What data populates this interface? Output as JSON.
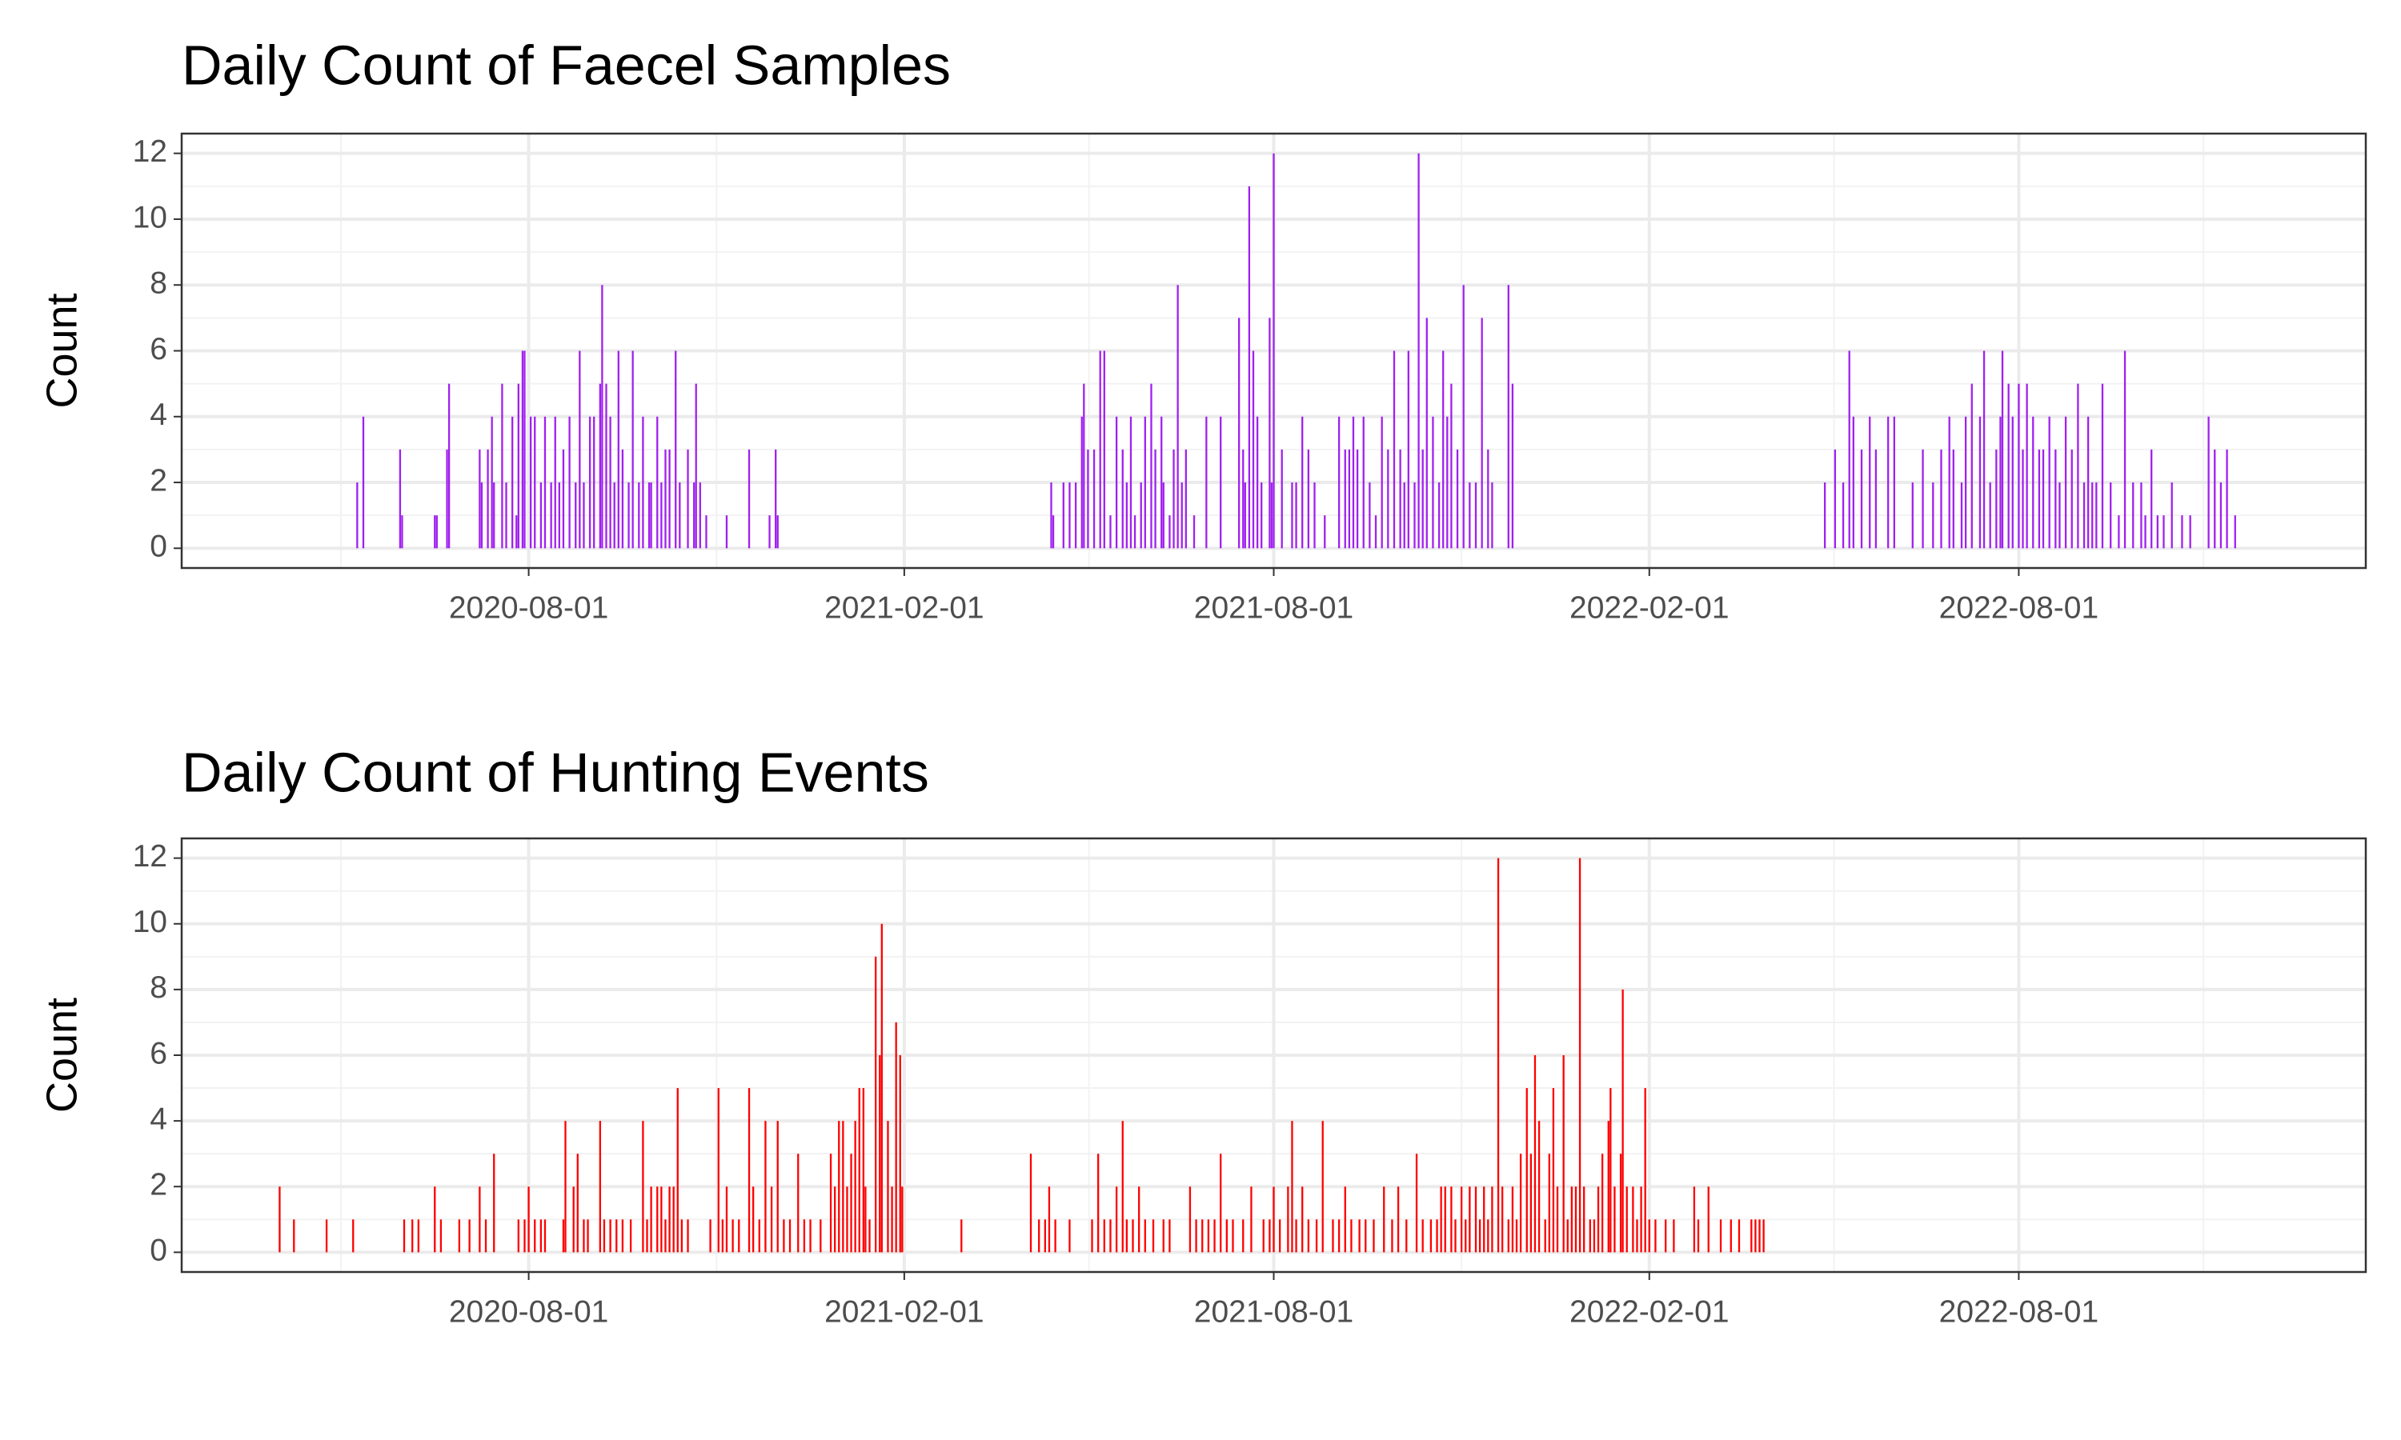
{
  "chart_data": [
    {
      "type": "bar",
      "title": "Daily Count of Faecel Samples",
      "y_label": "Count",
      "color": "#a020f0",
      "x": [
        "2020-05-09",
        "2020-05-12",
        "2020-05-30",
        "2020-05-31",
        "2020-06-16",
        "2020-06-17",
        "2020-06-22",
        "2020-06-23",
        "2020-07-08",
        "2020-07-09",
        "2020-07-12",
        "2020-07-14",
        "2020-07-15",
        "2020-07-19",
        "2020-07-21",
        "2020-07-24",
        "2020-07-26",
        "2020-07-27",
        "2020-07-29",
        "2020-07-30",
        "2020-08-02",
        "2020-08-04",
        "2020-08-07",
        "2020-08-09",
        "2020-08-12",
        "2020-08-14",
        "2020-08-16",
        "2020-08-18",
        "2020-08-21",
        "2020-08-24",
        "2020-08-26",
        "2020-08-28",
        "2020-08-31",
        "2020-09-02",
        "2020-09-05",
        "2020-09-06",
        "2020-09-08",
        "2020-09-10",
        "2020-09-12",
        "2020-09-14",
        "2020-09-16",
        "2020-09-19",
        "2020-09-21",
        "2020-09-24",
        "2020-09-26",
        "2020-09-29",
        "2020-09-30",
        "2020-10-03",
        "2020-10-05",
        "2020-10-07",
        "2020-10-09",
        "2020-10-12",
        "2020-10-14",
        "2020-10-18",
        "2020-10-21",
        "2020-10-22",
        "2020-10-24",
        "2020-10-27",
        "2020-11-06",
        "2020-11-17",
        "2020-11-27",
        "2020-11-30",
        "2020-12-01",
        "2021-04-14",
        "2021-04-15",
        "2021-04-20",
        "2021-04-23",
        "2021-04-26",
        "2021-04-29",
        "2021-04-30",
        "2021-05-02",
        "2021-05-05",
        "2021-05-08",
        "2021-05-10",
        "2021-05-13",
        "2021-05-16",
        "2021-05-19",
        "2021-05-21",
        "2021-05-23",
        "2021-05-25",
        "2021-05-28",
        "2021-05-30",
        "2021-06-02",
        "2021-06-04",
        "2021-06-07",
        "2021-06-08",
        "2021-06-11",
        "2021-06-13",
        "2021-06-15",
        "2021-06-17",
        "2021-06-19",
        "2021-06-23",
        "2021-06-29",
        "2021-07-06",
        "2021-07-15",
        "2021-07-17",
        "2021-07-18",
        "2021-07-20",
        "2021-07-22",
        "2021-07-24",
        "2021-07-26",
        "2021-07-30",
        "2021-07-31",
        "2021-08-01",
        "2021-08-05",
        "2021-08-10",
        "2021-08-12",
        "2021-08-15",
        "2021-08-18",
        "2021-08-21",
        "2021-08-26",
        "2021-09-02",
        "2021-09-05",
        "2021-09-07",
        "2021-09-09",
        "2021-09-11",
        "2021-09-14",
        "2021-09-17",
        "2021-09-20",
        "2021-09-23",
        "2021-09-26",
        "2021-09-29",
        "2021-10-02",
        "2021-10-04",
        "2021-10-06",
        "2021-10-09",
        "2021-10-11",
        "2021-10-13",
        "2021-10-15",
        "2021-10-18",
        "2021-10-21",
        "2021-10-23",
        "2021-10-25",
        "2021-10-27",
        "2021-10-30",
        "2021-11-02",
        "2021-11-05",
        "2021-11-08",
        "2021-11-11",
        "2021-11-14",
        "2021-11-16",
        "2021-11-24",
        "2021-11-26",
        "2022-04-28",
        "2022-05-03",
        "2022-05-07",
        "2022-05-10",
        "2022-05-12",
        "2022-05-16",
        "2022-05-20",
        "2022-05-23",
        "2022-05-29",
        "2022-06-01",
        "2022-06-10",
        "2022-06-15",
        "2022-06-20",
        "2022-06-24",
        "2022-06-28",
        "2022-06-30",
        "2022-07-04",
        "2022-07-06",
        "2022-07-09",
        "2022-07-13",
        "2022-07-15",
        "2022-07-18",
        "2022-07-21",
        "2022-07-23",
        "2022-07-24",
        "2022-07-27",
        "2022-07-29",
        "2022-08-01",
        "2022-08-03",
        "2022-08-05",
        "2022-08-08",
        "2022-08-11",
        "2022-08-13",
        "2022-08-16",
        "2022-08-19",
        "2022-08-21",
        "2022-08-24",
        "2022-08-27",
        "2022-08-30",
        "2022-09-02",
        "2022-09-04",
        "2022-09-06",
        "2022-09-08",
        "2022-09-11",
        "2022-09-15",
        "2022-09-19",
        "2022-09-22",
        "2022-09-26",
        "2022-09-30",
        "2022-10-02",
        "2022-10-05",
        "2022-10-08",
        "2022-10-11",
        "2022-10-15",
        "2022-10-20",
        "2022-10-24",
        "2022-11-02",
        "2022-11-05",
        "2022-11-08",
        "2022-11-11",
        "2022-11-15"
      ],
      "values": [
        2,
        4,
        3,
        1,
        1,
        1,
        3,
        5,
        3,
        2,
        3,
        4,
        2,
        5,
        2,
        4,
        1,
        5,
        6,
        6,
        4,
        4,
        2,
        4,
        2,
        4,
        2,
        3,
        4,
        2,
        6,
        2,
        4,
        4,
        5,
        8,
        5,
        4,
        2,
        6,
        3,
        2,
        6,
        2,
        4,
        2,
        2,
        4,
        2,
        3,
        3,
        6,
        2,
        3,
        2,
        5,
        2,
        1,
        1,
        3,
        1,
        3,
        1,
        2,
        1,
        2,
        2,
        2,
        4,
        5,
        3,
        3,
        6,
        6,
        1,
        4,
        3,
        2,
        4,
        1,
        2,
        4,
        5,
        3,
        4,
        2,
        1,
        3,
        8,
        2,
        3,
        1,
        4,
        4,
        7,
        3,
        2,
        11,
        6,
        4,
        2,
        7,
        2,
        12,
        3,
        2,
        2,
        4,
        3,
        2,
        1,
        4,
        3,
        3,
        4,
        3,
        4,
        2,
        1,
        4,
        3,
        6,
        3,
        2,
        6,
        2,
        12,
        3,
        7,
        4,
        2,
        6,
        4,
        5,
        3,
        8,
        2,
        2,
        7,
        3,
        2,
        8,
        5,
        2,
        3,
        2,
        6,
        4,
        3,
        4,
        3,
        4,
        4,
        2,
        3,
        2,
        3,
        4,
        3,
        2,
        4,
        5,
        4,
        6,
        2,
        3,
        4,
        6,
        5,
        4,
        5,
        3,
        5,
        4,
        3,
        3,
        4,
        3,
        2,
        4,
        3,
        5,
        2,
        4,
        2,
        2,
        5,
        2,
        1,
        6,
        2,
        2,
        1,
        3,
        1,
        1,
        2,
        1,
        1,
        4,
        3,
        2,
        3,
        1
      ],
      "xlim": [
        "2020-02-13",
        "2023-01-18"
      ],
      "xticks": [
        "2020-08-01",
        "2021-02-01",
        "2021-08-01",
        "2022-02-01",
        "2022-08-01"
      ],
      "ylim": [
        -0.6,
        12.6
      ],
      "yticks": [
        0,
        2,
        4,
        6,
        8,
        10,
        12
      ],
      "grid": true
    },
    {
      "type": "bar",
      "title": "Daily Count of Hunting Events",
      "y_label": "Count",
      "color": "#ff0000",
      "x": [
        "2020-04-01",
        "2020-04-08",
        "2020-04-24",
        "2020-05-07",
        "2020-06-01",
        "2020-06-05",
        "2020-06-08",
        "2020-06-16",
        "2020-06-19",
        "2020-06-28",
        "2020-07-03",
        "2020-07-08",
        "2020-07-11",
        "2020-07-15",
        "2020-07-27",
        "2020-07-30",
        "2020-08-01",
        "2020-08-04",
        "2020-08-07",
        "2020-08-09",
        "2020-08-18",
        "2020-08-19",
        "2020-08-23",
        "2020-08-25",
        "2020-08-28",
        "2020-08-30",
        "2020-09-05",
        "2020-09-07",
        "2020-09-10",
        "2020-09-13",
        "2020-09-16",
        "2020-09-20",
        "2020-09-26",
        "2020-09-28",
        "2020-09-30",
        "2020-10-03",
        "2020-10-05",
        "2020-10-07",
        "2020-10-09",
        "2020-10-11",
        "2020-10-13",
        "2020-10-15",
        "2020-10-18",
        "2020-10-29",
        "2020-11-02",
        "2020-11-04",
        "2020-11-06",
        "2020-11-09",
        "2020-11-12",
        "2020-11-17",
        "2020-11-19",
        "2020-11-22",
        "2020-11-25",
        "2020-11-28",
        "2020-12-01",
        "2020-12-04",
        "2020-12-07",
        "2020-12-11",
        "2020-12-14",
        "2020-12-17",
        "2020-12-22",
        "2020-12-27",
        "2020-12-29",
        "2020-12-31",
        "2021-01-02",
        "2021-01-04",
        "2021-01-06",
        "2021-01-08",
        "2021-01-10",
        "2021-01-12",
        "2021-01-13",
        "2021-01-15",
        "2021-01-18",
        "2021-01-20",
        "2021-01-21",
        "2021-01-24",
        "2021-01-26",
        "2021-01-28",
        "2021-01-30",
        "2021-01-31",
        "2021-03-01",
        "2021-04-04",
        "2021-04-08",
        "2021-04-11",
        "2021-04-13",
        "2021-04-16",
        "2021-04-23",
        "2021-05-04",
        "2021-05-07",
        "2021-05-10",
        "2021-05-13",
        "2021-05-16",
        "2021-05-19",
        "2021-05-21",
        "2021-05-24",
        "2021-05-27",
        "2021-05-30",
        "2021-06-03",
        "2021-06-08",
        "2021-06-11",
        "2021-06-21",
        "2021-06-24",
        "2021-06-27",
        "2021-06-30",
        "2021-07-03",
        "2021-07-06",
        "2021-07-09",
        "2021-07-12",
        "2021-07-17",
        "2021-07-21",
        "2021-07-27",
        "2021-07-30",
        "2021-08-01",
        "2021-08-04",
        "2021-08-08",
        "2021-08-10",
        "2021-08-12",
        "2021-08-15",
        "2021-08-18",
        "2021-08-22",
        "2021-08-25",
        "2021-08-30",
        "2021-09-02",
        "2021-09-05",
        "2021-09-08",
        "2021-09-12",
        "2021-09-15",
        "2021-09-19",
        "2021-09-24",
        "2021-09-28",
        "2021-10-01",
        "2021-10-05",
        "2021-10-10",
        "2021-10-13",
        "2021-10-17",
        "2021-10-20",
        "2021-10-22",
        "2021-10-24",
        "2021-10-27",
        "2021-10-29",
        "2021-11-01",
        "2021-11-03",
        "2021-11-05",
        "2021-11-08",
        "2021-11-10",
        "2021-11-12",
        "2021-11-14",
        "2021-11-16",
        "2021-11-19",
        "2021-11-21",
        "2021-11-24",
        "2021-11-26",
        "2021-11-28",
        "2021-11-30",
        "2021-12-03",
        "2021-12-05",
        "2021-12-07",
        "2021-12-09",
        "2021-12-12",
        "2021-12-14",
        "2021-12-16",
        "2021-12-18",
        "2021-12-21",
        "2021-12-23",
        "2021-12-25",
        "2021-12-27",
        "2021-12-29",
        "2021-12-31",
        "2022-01-03",
        "2022-01-05",
        "2022-01-07",
        "2022-01-09",
        "2022-01-12",
        "2022-01-13",
        "2022-01-15",
        "2022-01-18",
        "2022-01-19",
        "2022-01-21",
        "2022-01-24",
        "2022-01-26",
        "2022-01-28",
        "2022-01-30",
        "2022-02-01",
        "2022-02-04",
        "2022-02-09",
        "2022-02-13",
        "2022-02-23",
        "2022-02-25",
        "2022-03-02",
        "2022-03-08",
        "2022-03-13",
        "2022-03-17",
        "2022-03-23",
        "2022-03-25",
        "2022-03-27",
        "2022-03-29"
      ],
      "values": [
        2,
        1,
        1,
        1,
        1,
        1,
        1,
        2,
        1,
        1,
        1,
        2,
        1,
        3,
        1,
        1,
        2,
        1,
        1,
        1,
        1,
        4,
        2,
        3,
        1,
        1,
        4,
        1,
        1,
        1,
        1,
        1,
        4,
        1,
        2,
        2,
        2,
        1,
        2,
        2,
        5,
        1,
        1,
        1,
        5,
        1,
        2,
        1,
        1,
        5,
        2,
        1,
        4,
        2,
        4,
        1,
        1,
        3,
        1,
        1,
        1,
        3,
        2,
        4,
        4,
        2,
        3,
        4,
        5,
        5,
        2,
        1,
        9,
        6,
        10,
        4,
        2,
        7,
        6,
        2,
        1,
        3,
        1,
        1,
        2,
        1,
        1,
        1,
        3,
        1,
        1,
        2,
        4,
        1,
        1,
        2,
        1,
        1,
        1,
        1,
        2,
        1,
        1,
        1,
        1,
        3,
        1,
        1,
        1,
        2,
        1,
        1,
        2,
        1,
        2,
        4,
        1,
        2,
        1,
        1,
        4,
        1,
        1,
        2,
        1,
        1,
        1,
        1,
        2,
        1,
        2,
        1,
        3,
        1,
        1,
        1,
        2,
        2,
        2,
        1,
        2,
        1,
        2,
        2,
        1,
        2,
        1,
        2,
        12,
        2,
        1,
        2,
        1,
        3,
        5,
        3,
        6,
        4,
        1,
        3,
        5,
        2,
        6,
        1,
        2,
        2,
        12,
        2,
        1,
        1,
        2,
        3,
        4,
        5,
        2,
        3,
        8,
        2,
        2,
        1,
        2,
        5,
        1,
        1,
        1,
        1,
        2,
        1,
        2,
        1,
        1,
        1,
        1,
        1,
        1,
        1
      ],
      "xlim": [
        "2020-02-13",
        "2023-01-18"
      ],
      "xticks": [
        "2020-08-01",
        "2021-02-01",
        "2021-08-01",
        "2022-02-01",
        "2022-08-01"
      ],
      "ylim": [
        -0.6,
        12.6
      ],
      "yticks": [
        0,
        2,
        4,
        6,
        8,
        10,
        12
      ],
      "grid": true
    }
  ]
}
